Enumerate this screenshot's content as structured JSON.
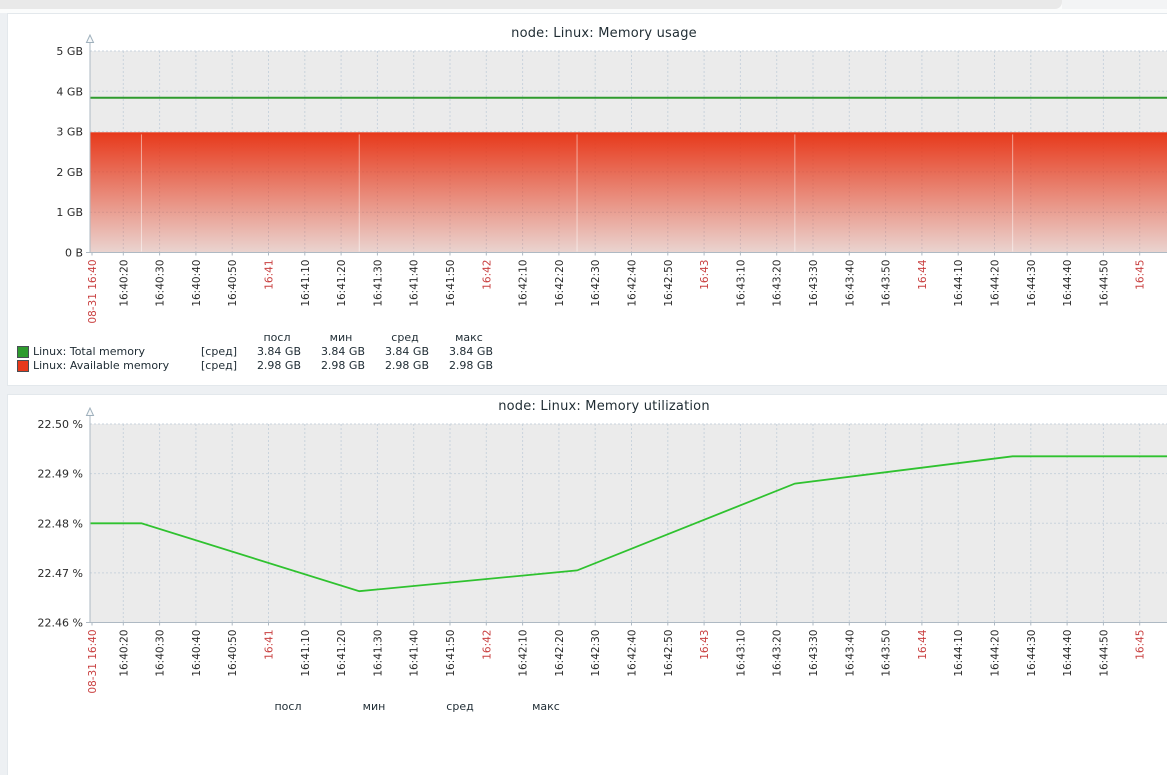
{
  "chart_data": [
    {
      "type": "area",
      "title": "node: Linux: Memory usage",
      "legend_position": "bottom",
      "grid": true,
      "y_axis": {
        "min": 0,
        "max": 5,
        "unit": "GB",
        "ticks": [
          "5 GB",
          "4 GB",
          "3 GB",
          "2 GB",
          "1 GB",
          "0 B"
        ]
      },
      "x_ticks": [
        {
          "t": "08-31 16:40",
          "hl": true
        },
        {
          "t": "16:40:20"
        },
        {
          "t": "16:40:30"
        },
        {
          "t": "16:40:40"
        },
        {
          "t": "16:40:50"
        },
        {
          "t": "16:41",
          "hl": true
        },
        {
          "t": "16:41:10"
        },
        {
          "t": "16:41:20"
        },
        {
          "t": "16:41:30"
        },
        {
          "t": "16:41:40"
        },
        {
          "t": "16:41:50"
        },
        {
          "t": "16:42",
          "hl": true
        },
        {
          "t": "16:42:10"
        },
        {
          "t": "16:42:20"
        },
        {
          "t": "16:42:30"
        },
        {
          "t": "16:42:40"
        },
        {
          "t": "16:42:50"
        },
        {
          "t": "16:43",
          "hl": true
        },
        {
          "t": "16:43:10"
        },
        {
          "t": "16:43:20"
        },
        {
          "t": "16:43:30"
        },
        {
          "t": "16:43:40"
        },
        {
          "t": "16:43:50"
        },
        {
          "t": "16:44",
          "hl": true
        },
        {
          "t": "16:44:10"
        },
        {
          "t": "16:44:20"
        },
        {
          "t": "16:44:30"
        },
        {
          "t": "16:44:40"
        },
        {
          "t": "16:44:50"
        },
        {
          "t": "16:45",
          "hl": true
        }
      ],
      "series": [
        {
          "name": "Linux: Total memory",
          "type": "line",
          "color": "#2E9B2E",
          "constant": 3.84
        },
        {
          "name": "Linux: Available memory",
          "type": "area",
          "color": "#E7391B",
          "constant": 2.98,
          "gap_marks": [
            "16:40:25",
            "16:41:25",
            "16:42:25",
            "16:43:25",
            "16:44:25"
          ]
        }
      ],
      "legend": {
        "headers": [
          "посл",
          "мин",
          "сред",
          "макс"
        ],
        "rows": [
          {
            "color": "#2E9B2E",
            "label": "Linux: Total memory",
            "fn": "[сред]",
            "values": [
              "3.84 GB",
              "3.84 GB",
              "3.84 GB",
              "3.84 GB"
            ]
          },
          {
            "color": "#E7391B",
            "label": "Linux: Available memory",
            "fn": "[сред]",
            "values": [
              "2.98 GB",
              "2.98 GB",
              "2.98 GB",
              "2.98 GB"
            ]
          }
        ]
      }
    },
    {
      "type": "line",
      "title": "node: Linux: Memory utilization",
      "legend_position": "bottom",
      "grid": true,
      "y_axis": {
        "min": 22.46,
        "max": 22.5,
        "unit": "%",
        "ticks": [
          "22.50 %",
          "22.49 %",
          "22.48 %",
          "22.47 %",
          "22.46 %"
        ]
      },
      "x_ticks": [
        {
          "t": "08-31 16:40",
          "hl": true
        },
        {
          "t": "16:40:20"
        },
        {
          "t": "16:40:30"
        },
        {
          "t": "16:40:40"
        },
        {
          "t": "16:40:50"
        },
        {
          "t": "16:41",
          "hl": true
        },
        {
          "t": "16:41:10"
        },
        {
          "t": "16:41:20"
        },
        {
          "t": "16:41:30"
        },
        {
          "t": "16:41:40"
        },
        {
          "t": "16:41:50"
        },
        {
          "t": "16:42",
          "hl": true
        },
        {
          "t": "16:42:10"
        },
        {
          "t": "16:42:20"
        },
        {
          "t": "16:42:30"
        },
        {
          "t": "16:42:40"
        },
        {
          "t": "16:42:50"
        },
        {
          "t": "16:43",
          "hl": true
        },
        {
          "t": "16:43:10"
        },
        {
          "t": "16:43:20"
        },
        {
          "t": "16:43:30"
        },
        {
          "t": "16:43:40"
        },
        {
          "t": "16:43:50"
        },
        {
          "t": "16:44",
          "hl": true
        },
        {
          "t": "16:44:10"
        },
        {
          "t": "16:44:20"
        },
        {
          "t": "16:44:30"
        },
        {
          "t": "16:44:40"
        },
        {
          "t": "16:44:50"
        },
        {
          "t": "16:45",
          "hl": true
        }
      ],
      "series": [
        {
          "type": "line",
          "color": "#2FC22F",
          "points": [
            [
              "16:40:11",
              22.48
            ],
            [
              "16:40:25",
              22.48
            ],
            [
              "16:41:25",
              22.4663
            ],
            [
              "16:42:25",
              22.4705
            ],
            [
              "16:43:25",
              22.488
            ],
            [
              "16:44:25",
              22.4935
            ],
            [
              "16:45:30",
              22.4935
            ]
          ]
        }
      ],
      "legend": {
        "headers": [
          "посл",
          "мин",
          "сред",
          "макс"
        ],
        "rows": []
      }
    }
  ]
}
